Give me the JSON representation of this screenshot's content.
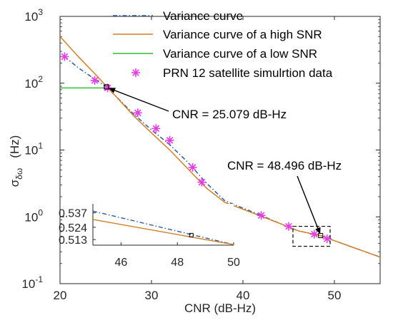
{
  "chart_data": {
    "type": "line",
    "xlabel": "CNR  (dB-Hz)",
    "ylabel_main": "σ",
    "ylabel_sub": "δω",
    "ylabel_unit": "(Hz)",
    "xlim": [
      20,
      55
    ],
    "ylim": [
      0.1,
      1000
    ],
    "yscale": "log",
    "x_ticks": [
      "20",
      "30",
      "40",
      "50"
    ],
    "x_tick_values": [
      20,
      30,
      40,
      50
    ],
    "y_ticks": [
      {
        "base": "10",
        "exp": "-1",
        "value": 0.1
      },
      {
        "base": "10",
        "exp": "0",
        "value": 1
      },
      {
        "base": "10",
        "exp": "1",
        "value": 10
      },
      {
        "base": "10",
        "exp": "2",
        "value": 100
      },
      {
        "base": "10",
        "exp": "3",
        "value": 1000
      }
    ],
    "legend_position": "top-right",
    "series": [
      {
        "name": "Variance curve",
        "style": "dash-dot",
        "color": "#2c5aa8",
        "x": [
          20.5,
          22,
          24,
          25.079,
          26,
          28,
          30,
          32,
          34,
          36,
          38,
          40,
          42,
          44,
          46,
          48.496,
          50,
          52,
          55
        ],
        "y": [
          250,
          170,
          110,
          88,
          66,
          35,
          20,
          12,
          6.5,
          3.2,
          1.75,
          1.35,
          1.05,
          0.8,
          0.62,
          0.524,
          0.44,
          0.35,
          0.25
        ]
      },
      {
        "name": "Variance curve of a high SNR",
        "style": "solid",
        "color": "#d47f24",
        "x": [
          20,
          22,
          24,
          25.079,
          26,
          28,
          30,
          32,
          34,
          36,
          38,
          40,
          42,
          44,
          46,
          48.496,
          50,
          52,
          55
        ],
        "y": [
          500,
          250,
          130,
          90,
          66,
          33,
          18,
          10,
          5.2,
          2.7,
          1.65,
          1.3,
          1.02,
          0.8,
          0.62,
          0.52,
          0.44,
          0.35,
          0.25
        ]
      },
      {
        "name": "Variance curve of a low SNR",
        "style": "solid",
        "color": "#2fc132",
        "x": [
          20,
          25.079
        ],
        "y": [
          85,
          85
        ]
      },
      {
        "name": "PRN 12 satellite simulrtion data",
        "style": "marker",
        "marker": "*",
        "color": "#e63ce6",
        "x": [
          20.5,
          23.8,
          25.2,
          28.5,
          30.5,
          32,
          34.5,
          35.5,
          42,
          45,
          47.8,
          49.2
        ],
        "y": [
          250,
          110,
          85,
          36,
          21,
          14,
          5.5,
          3.3,
          1.05,
          0.72,
          0.55,
          0.47
        ]
      }
    ],
    "annotations": [
      {
        "text": "CNR = 25.079 dB-Hz",
        "x": 25.079,
        "y": 88
      },
      {
        "text": "CNR = 48.496 dB-Hz",
        "x": 48.496,
        "y": 0.524
      }
    ],
    "inset": {
      "xlim": [
        45,
        50
      ],
      "ylim": [
        0.508,
        0.545
      ],
      "x_ticks": [
        "46",
        "48",
        "50"
      ],
      "x_tick_values": [
        46,
        48,
        50
      ],
      "y_ticks": [
        "0.537",
        "0.524",
        "0.513"
      ],
      "y_tick_values": [
        0.537,
        0.524,
        0.513
      ],
      "series": [
        {
          "name": "Variance curve",
          "x": [
            45,
            50
          ],
          "y": [
            0.5385,
            0.5085
          ]
        },
        {
          "name": "Variance curve of a high SNR",
          "x": [
            45,
            50
          ],
          "y": [
            0.531,
            0.5085
          ]
        }
      ],
      "marker_point": {
        "x": 48.496,
        "y": 0.517
      }
    }
  },
  "colors": {
    "variance": "#2c5aa8",
    "high_snr": "#d47f24",
    "low_snr": "#2fc132",
    "markers": "#e63ce6",
    "axes": "#262626"
  }
}
